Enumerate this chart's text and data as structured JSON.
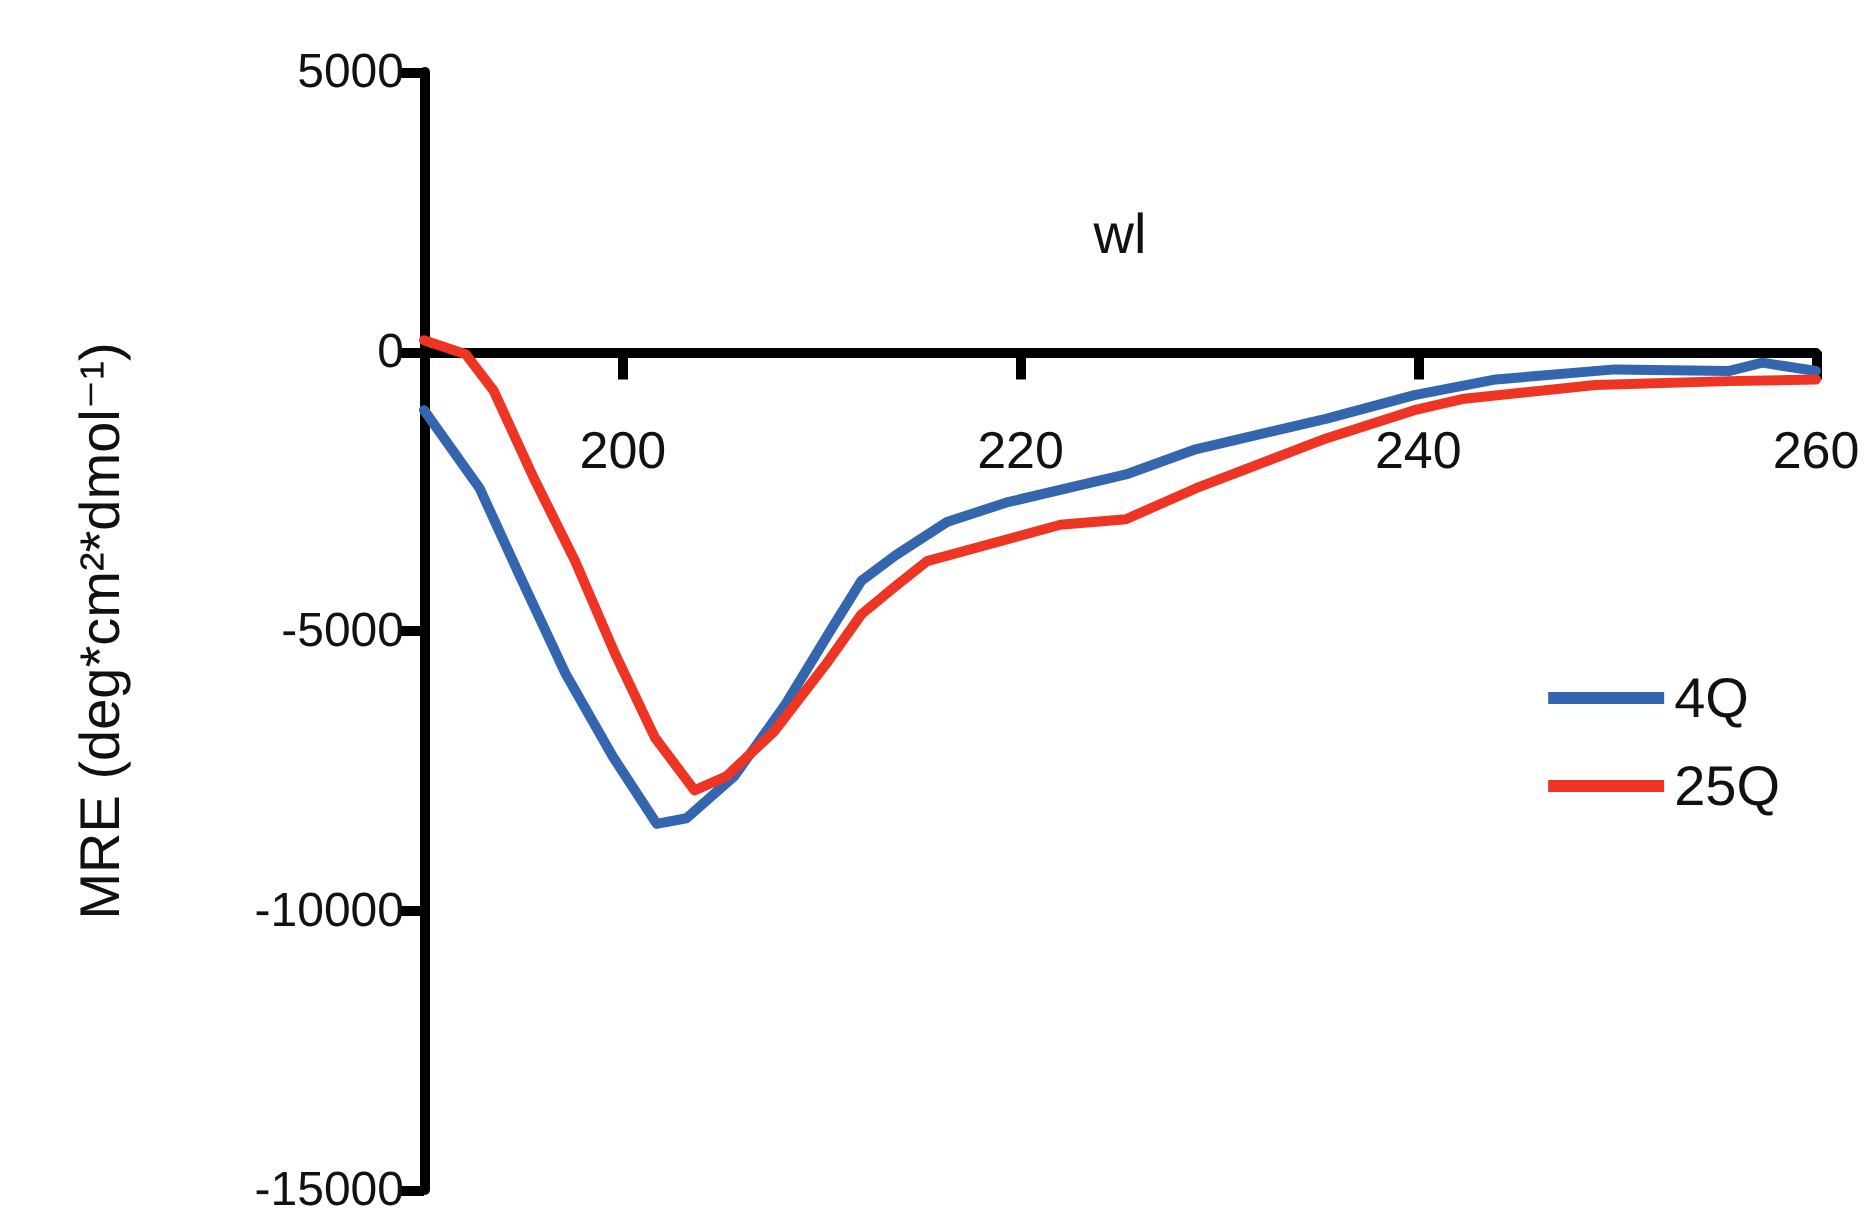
{
  "chart_data": {
    "type": "line",
    "xlabel": "wl",
    "ylabel": "MRE (deg*cm²*dmol⁻¹)",
    "xlim": [
      190,
      260
    ],
    "xticks": [
      200,
      220,
      240,
      260
    ],
    "ylim": [
      -15000,
      5000
    ],
    "yticks": [
      -15000,
      -10000,
      -5000,
      0,
      5000
    ],
    "grid": false,
    "legend": "right",
    "line_style": "solid",
    "marker": "none",
    "series": [
      {
        "name": "4Q",
        "color": "#3466b0",
        "x": [
          190,
          192.8,
          194.8,
          197.1,
          199.5,
          201.7,
          203.2,
          205.6,
          208.2,
          210.6,
          212,
          213.7,
          216.3,
          219.3,
          225.3,
          228.8,
          235.4,
          239.8,
          243.9,
          249.9,
          255.6,
          257.3,
          260
        ],
        "values": [
          -1050,
          -2450,
          -4000,
          -5750,
          -7250,
          -8450,
          -8350,
          -7600,
          -6300,
          -4900,
          -4100,
          -3650,
          -3050,
          -2700,
          -2200,
          -1750,
          -1200,
          -780,
          -500,
          -320,
          -350,
          -200,
          -350
        ]
      },
      {
        "name": "25Q",
        "color": "#ee3524",
        "x": [
          190,
          192.1,
          193.5,
          195.5,
          197.6,
          199.6,
          201.6,
          203.6,
          205.2,
          207.6,
          210.2,
          212,
          213.7,
          215.3,
          222,
          225.3,
          228.8,
          235.4,
          239.8,
          242.2,
          248.9,
          255.6,
          260
        ],
        "values": [
          200,
          -50,
          -700,
          -2250,
          -3750,
          -5400,
          -6900,
          -7850,
          -7600,
          -6800,
          -5600,
          -4700,
          -4200,
          -3750,
          -3100,
          -3000,
          -2450,
          -1550,
          -1050,
          -850,
          -600,
          -530,
          -500
        ]
      }
    ]
  }
}
